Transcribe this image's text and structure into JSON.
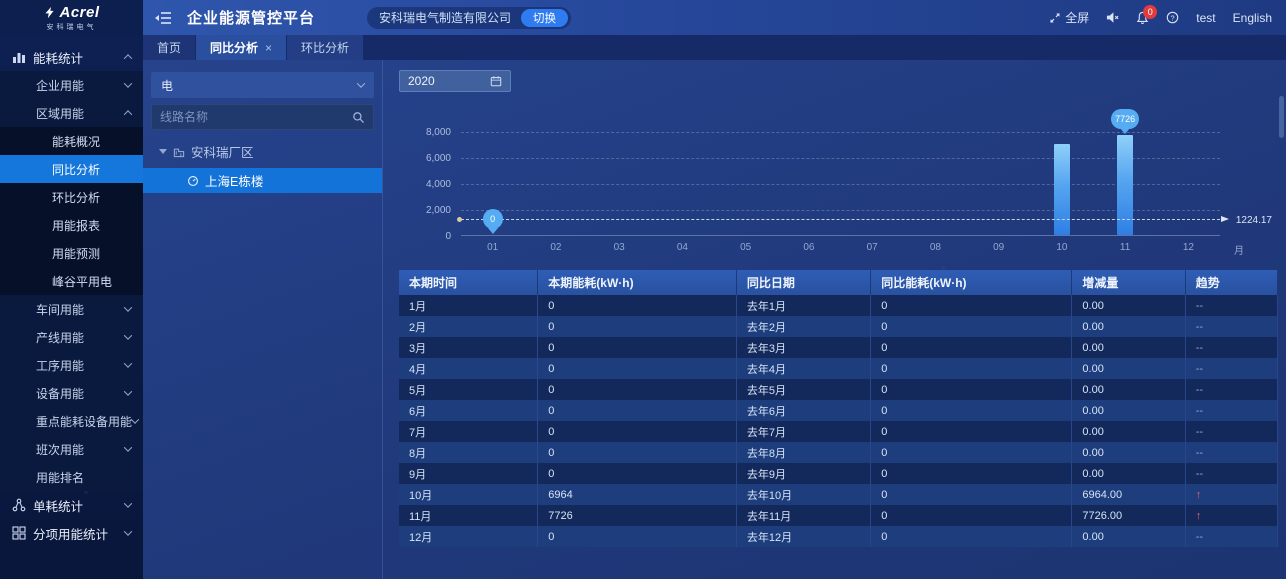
{
  "brand": {
    "name": "Acrel",
    "subtitle": "安科瑞电气"
  },
  "header": {
    "title": "企业能源管控平台",
    "company": "安科瑞电气制造有限公司",
    "switch_label": "切换",
    "fullscreen_label": "全屏",
    "notification_count": "0",
    "username": "test",
    "language": "English"
  },
  "icons": {
    "close": "×"
  },
  "tabs": [
    {
      "label": "首页",
      "active": false,
      "closable": false
    },
    {
      "label": "同比分析",
      "active": true,
      "closable": true
    },
    {
      "label": "环比分析",
      "active": false,
      "closable": false
    }
  ],
  "sidebar": {
    "items": [
      {
        "label": "能耗统计",
        "level": 1,
        "icon": "bar-chart-icon",
        "caret": "up"
      },
      {
        "label": "企业用能",
        "level": 2,
        "caret": "down"
      },
      {
        "label": "区域用能",
        "level": 2,
        "caret": "up"
      },
      {
        "label": "能耗概况",
        "level": 3
      },
      {
        "label": "同比分析",
        "level": 3,
        "active": true
      },
      {
        "label": "环比分析",
        "level": 3
      },
      {
        "label": "用能报表",
        "level": 3
      },
      {
        "label": "用能预测",
        "level": 3
      },
      {
        "label": "峰谷平用电",
        "level": 3
      },
      {
        "label": "车间用能",
        "level": 2,
        "caret": "down"
      },
      {
        "label": "产线用能",
        "level": 2,
        "caret": "down"
      },
      {
        "label": "工序用能",
        "level": 2,
        "caret": "down"
      },
      {
        "label": "设备用能",
        "level": 2,
        "caret": "down"
      },
      {
        "label": "重点能耗设备用能",
        "level": 2,
        "caret": "down"
      },
      {
        "label": "班次用能",
        "level": 2,
        "caret": "down"
      },
      {
        "label": "用能排名",
        "level": 2
      },
      {
        "label": "单耗统计",
        "level": 1,
        "icon": "unit-consumption-icon",
        "caret": "down"
      },
      {
        "label": "分项用能统计",
        "level": 1,
        "icon": "subentry-grid-icon",
        "caret": "down"
      }
    ]
  },
  "filter_panel": {
    "energy_type": "电",
    "search_placeholder": "线路名称",
    "tree": [
      {
        "label": "安科瑞厂区",
        "level": 1,
        "expanded": true
      },
      {
        "label": "上海E栋楼",
        "level": 2,
        "selected": true
      }
    ]
  },
  "toolbar": {
    "year": "2020"
  },
  "chart_data": {
    "type": "bar",
    "categories": [
      "01",
      "02",
      "03",
      "04",
      "05",
      "06",
      "07",
      "08",
      "09",
      "10",
      "11",
      "12"
    ],
    "values": [
      0,
      0,
      0,
      0,
      0,
      0,
      0,
      0,
      0,
      6964,
      7726,
      0
    ],
    "ylim": [
      0,
      8000
    ],
    "ytick_labels": [
      "8,000",
      "6,000",
      "4,000",
      "2,000",
      "0"
    ],
    "xlabel": "月",
    "grid": "dashed horizontal",
    "legend": "none",
    "bar_color": "#4aa0f0",
    "average": 1224.17,
    "average_label": "1224.17",
    "min_marker": {
      "index": 0,
      "label": "0"
    },
    "max_marker": {
      "index": 10,
      "label": "7726"
    }
  },
  "table": {
    "headers": [
      "本期时间",
      "本期能耗(kW·h)",
      "同比日期",
      "同比能耗(kW·h)",
      "增减量",
      "趋势"
    ],
    "rows": [
      [
        "1月",
        "0",
        "去年1月",
        "0",
        "0.00",
        "--"
      ],
      [
        "2月",
        "0",
        "去年2月",
        "0",
        "0.00",
        "--"
      ],
      [
        "3月",
        "0",
        "去年3月",
        "0",
        "0.00",
        "--"
      ],
      [
        "4月",
        "0",
        "去年4月",
        "0",
        "0.00",
        "--"
      ],
      [
        "5月",
        "0",
        "去年5月",
        "0",
        "0.00",
        "--"
      ],
      [
        "6月",
        "0",
        "去年6月",
        "0",
        "0.00",
        "--"
      ],
      [
        "7月",
        "0",
        "去年7月",
        "0",
        "0.00",
        "--"
      ],
      [
        "8月",
        "0",
        "去年8月",
        "0",
        "0.00",
        "--"
      ],
      [
        "9月",
        "0",
        "去年9月",
        "0",
        "0.00",
        "--"
      ],
      [
        "10月",
        "6964",
        "去年10月",
        "0",
        "6964.00",
        "↑"
      ],
      [
        "11月",
        "7726",
        "去年11月",
        "0",
        "7726.00",
        "↑"
      ],
      [
        "12月",
        "0",
        "去年12月",
        "0",
        "0.00",
        "--"
      ]
    ]
  }
}
